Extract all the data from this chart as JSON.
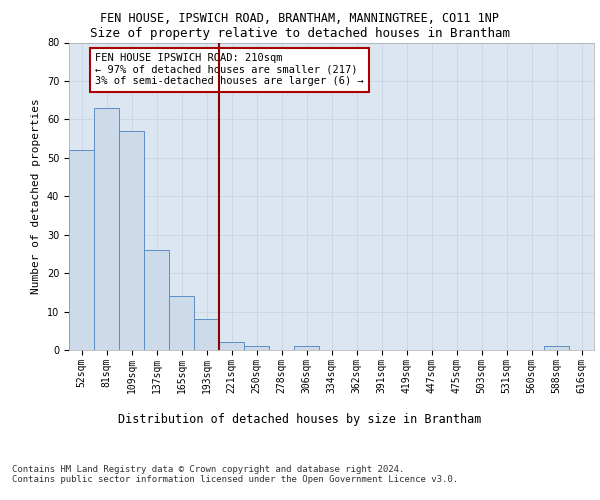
{
  "title1": "FEN HOUSE, IPSWICH ROAD, BRANTHAM, MANNINGTREE, CO11 1NP",
  "title2": "Size of property relative to detached houses in Brantham",
  "xlabel": "Distribution of detached houses by size in Brantham",
  "ylabel": "Number of detached properties",
  "categories": [
    "52sqm",
    "81sqm",
    "109sqm",
    "137sqm",
    "165sqm",
    "193sqm",
    "221sqm",
    "250sqm",
    "278sqm",
    "306sqm",
    "334sqm",
    "362sqm",
    "391sqm",
    "419sqm",
    "447sqm",
    "475sqm",
    "503sqm",
    "531sqm",
    "560sqm",
    "588sqm",
    "616sqm"
  ],
  "bar_values": [
    52,
    63,
    57,
    26,
    14,
    8,
    2,
    1,
    0,
    1,
    0,
    0,
    0,
    0,
    0,
    0,
    0,
    0,
    0,
    1,
    0
  ],
  "bar_color": "#ccdaea",
  "bar_edge_color": "#5b8ec4",
  "grid_color": "#c8d4e4",
  "background_color": "#dce6f1",
  "vline_color": "#8b0000",
  "annotation_text": "FEN HOUSE IPSWICH ROAD: 210sqm\n← 97% of detached houses are smaller (217)\n3% of semi-detached houses are larger (6) →",
  "annotation_box_color": "white",
  "annotation_edge_color": "#aa0000",
  "ylim": [
    0,
    80
  ],
  "yticks": [
    0,
    10,
    20,
    30,
    40,
    50,
    60,
    70,
    80
  ],
  "footnote": "Contains HM Land Registry data © Crown copyright and database right 2024.\nContains public sector information licensed under the Open Government Licence v3.0.",
  "title1_fontsize": 8.5,
  "title2_fontsize": 9,
  "ylabel_fontsize": 8,
  "xlabel_fontsize": 8.5,
  "tick_fontsize": 7,
  "annotation_fontsize": 7.5,
  "footnote_fontsize": 6.5
}
